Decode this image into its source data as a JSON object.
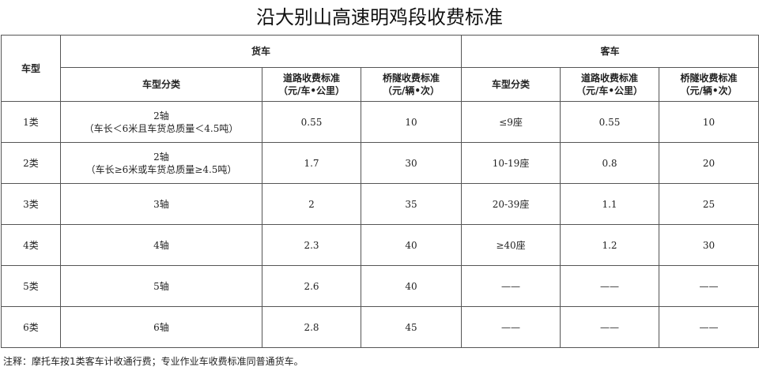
{
  "title": "沿大别山高速明鸡段收费标准",
  "headers": {
    "vehicle_type": "车型",
    "truck": "货车",
    "bus": "客车",
    "truck_cols": [
      "车型分类",
      "道路收费标准\n（元/车•公里）",
      "桥隧收费标准\n（元/辆•次）"
    ],
    "bus_cols": [
      "车型分类",
      "道路收费标准\n（元/车•公里）",
      "桥隧收费标准\n（元/辆•次）"
    ]
  },
  "rows": [
    {
      "type": "1类",
      "truck_class": "2轴",
      "truck_note": "（车长＜6米且车货总质量＜4.5吨）",
      "truck_road": "0.55",
      "truck_bridge": "10",
      "bus_class": "≤9座",
      "bus_road": "0.55",
      "bus_bridge": "10"
    },
    {
      "type": "2类",
      "truck_class": "2轴",
      "truck_note": "（车长≥6米或车货总质量≥4.5吨）",
      "truck_road": "1.7",
      "truck_bridge": "30",
      "bus_class": "10-19座",
      "bus_road": "0.8",
      "bus_bridge": "20"
    },
    {
      "type": "3类",
      "truck_class": "3轴",
      "truck_note": "",
      "truck_road": "2",
      "truck_bridge": "35",
      "bus_class": "20-39座",
      "bus_road": "1.1",
      "bus_bridge": "25"
    },
    {
      "type": "4类",
      "truck_class": "4轴",
      "truck_note": "",
      "truck_road": "2.3",
      "truck_bridge": "40",
      "bus_class": "≥40座",
      "bus_road": "1.2",
      "bus_bridge": "30"
    },
    {
      "type": "5类",
      "truck_class": "5轴",
      "truck_note": "",
      "truck_road": "2.6",
      "truck_bridge": "40",
      "bus_class": "——",
      "bus_road": "——",
      "bus_bridge": "——"
    },
    {
      "type": "6类",
      "truck_class": "6轴",
      "truck_note": "",
      "truck_road": "2.8",
      "truck_bridge": "45",
      "bus_class": "——",
      "bus_road": "——",
      "bus_bridge": "——"
    }
  ],
  "note": "注释：摩托车按1类客车计收通行费；专业作业车收费标准同普通货车。"
}
